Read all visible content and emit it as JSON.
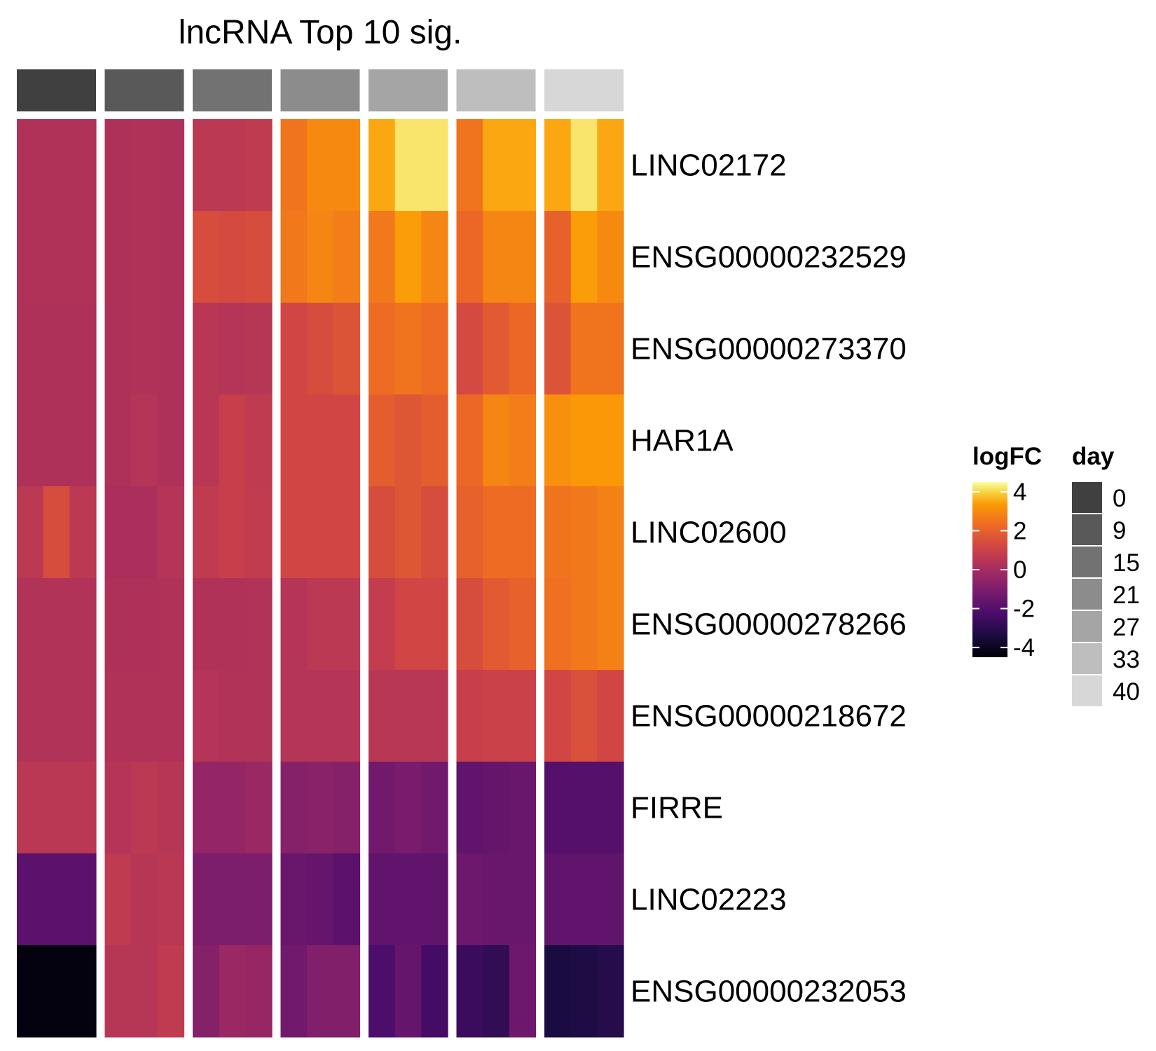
{
  "chart_data": {
    "type": "heatmap",
    "title": "lncRNA Top 10 sig.",
    "rows": [
      "LINC02172",
      "ENSG00000232529",
      "ENSG00000273370",
      "HAR1A",
      "LINC02600",
      "ENSG00000278266",
      "ENSG00000218672",
      "FIRRE",
      "LINC02223",
      "ENSG00000232053"
    ],
    "column_groups": [
      {
        "day": "0",
        "color": "#404040"
      },
      {
        "day": "9",
        "color": "#595959"
      },
      {
        "day": "15",
        "color": "#727272"
      },
      {
        "day": "21",
        "color": "#8c8c8c"
      },
      {
        "day": "27",
        "color": "#a5a5a5"
      },
      {
        "day": "33",
        "color": "#bebebe"
      },
      {
        "day": "40",
        "color": "#d7d7d7"
      }
    ],
    "columns_per_group": 3,
    "values": [
      [
        0.3,
        0.3,
        0.3,
        0.25,
        0.3,
        0.25,
        0.6,
        0.6,
        0.7,
        2.5,
        3.0,
        3.0,
        3.5,
        4.2,
        4.2,
        2.5,
        3.5,
        3.5,
        3.5,
        4.2,
        3.5
      ],
      [
        0.3,
        0.3,
        0.3,
        0.25,
        0.3,
        0.25,
        1.4,
        1.3,
        1.4,
        2.6,
        2.9,
        2.7,
        2.6,
        3.4,
        2.9,
        2.2,
        2.9,
        2.9,
        2.0,
        3.4,
        3.0
      ],
      [
        0.25,
        0.25,
        0.25,
        0.25,
        0.3,
        0.25,
        0.5,
        0.4,
        0.45,
        1.2,
        1.4,
        1.6,
        2.3,
        2.5,
        2.3,
        1.3,
        1.8,
        2.2,
        1.6,
        2.5,
        2.5
      ],
      [
        0.25,
        0.25,
        0.25,
        0.25,
        0.4,
        0.25,
        0.5,
        0.9,
        0.7,
        1.2,
        1.2,
        1.2,
        1.9,
        1.7,
        1.9,
        2.2,
        2.9,
        2.7,
        3.1,
        3.3,
        3.3
      ],
      [
        0.6,
        1.4,
        0.6,
        0.15,
        0.15,
        0.4,
        0.7,
        0.9,
        0.75,
        1.2,
        1.2,
        1.2,
        1.4,
        1.7,
        1.4,
        2.0,
        2.3,
        2.3,
        2.5,
        2.6,
        2.8
      ],
      [
        0.35,
        0.35,
        0.35,
        0.25,
        0.25,
        0.3,
        0.3,
        0.3,
        0.35,
        0.4,
        0.6,
        0.6,
        0.8,
        1.2,
        1.2,
        1.4,
        1.8,
        2.0,
        2.4,
        2.6,
        2.8
      ],
      [
        0.35,
        0.35,
        0.35,
        0.3,
        0.3,
        0.3,
        0.4,
        0.35,
        0.35,
        0.4,
        0.4,
        0.4,
        0.5,
        0.5,
        0.5,
        0.9,
        1.0,
        1.0,
        1.2,
        1.5,
        1.2
      ],
      [
        0.55,
        0.55,
        0.55,
        0.4,
        0.6,
        0.45,
        -0.4,
        -0.4,
        -0.3,
        -0.8,
        -0.7,
        -0.8,
        -1.3,
        -1.1,
        -1.3,
        -1.7,
        -1.6,
        -1.5,
        -2.0,
        -2.0,
        -2.0
      ],
      [
        -1.8,
        -1.8,
        -1.8,
        0.7,
        0.45,
        0.55,
        -1.0,
        -1.0,
        -1.0,
        -1.5,
        -1.6,
        -1.8,
        -1.7,
        -1.7,
        -1.7,
        -1.4,
        -1.5,
        -1.5,
        -1.7,
        -1.7,
        -1.7
      ],
      [
        -4.3,
        -4.3,
        -4.3,
        0.45,
        0.45,
        0.7,
        -0.8,
        -0.3,
        -0.35,
        -1.3,
        -0.9,
        -0.9,
        -2.2,
        -1.6,
        -2.4,
        -2.6,
        -2.8,
        -1.4,
        -3.4,
        -3.3,
        -3.1
      ]
    ],
    "legends": {
      "logFC": {
        "title": "logFC",
        "ticks": [
          "4",
          "2",
          "0",
          "-2",
          "-4"
        ],
        "tick_values": [
          4,
          2,
          0,
          -2,
          -4
        ],
        "range": [
          -4.5,
          4.5
        ]
      },
      "day": {
        "title": "day"
      }
    }
  }
}
